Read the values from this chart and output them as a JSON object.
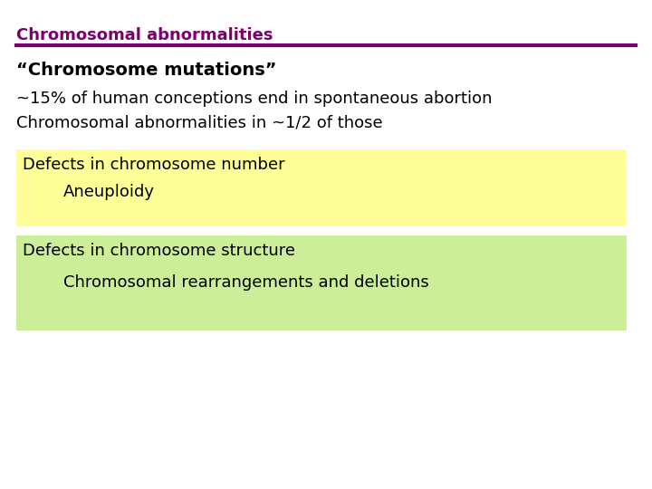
{
  "title": "Chromosomal abnormalities",
  "title_color": "#7B006E",
  "title_line_color": "#7B006E",
  "bg_color": "#ffffff",
  "line1": "“Chromosome mutations”",
  "line2": "~15% of human conceptions end in spontaneous abortion",
  "line3": "Chromosomal abnormalities in ~1/2 of those",
  "box1_text1": "Defects in chromosome number",
  "box1_text2": "Aneuploidy",
  "box1_color": "#FFFF99",
  "box2_text1": "Defects in chromosome structure",
  "box2_text2": "Chromosomal rearrangements and deletions",
  "box2_color": "#CCEE99",
  "text_color": "#000000",
  "body_fontsize": 13,
  "title_fontsize": 13
}
